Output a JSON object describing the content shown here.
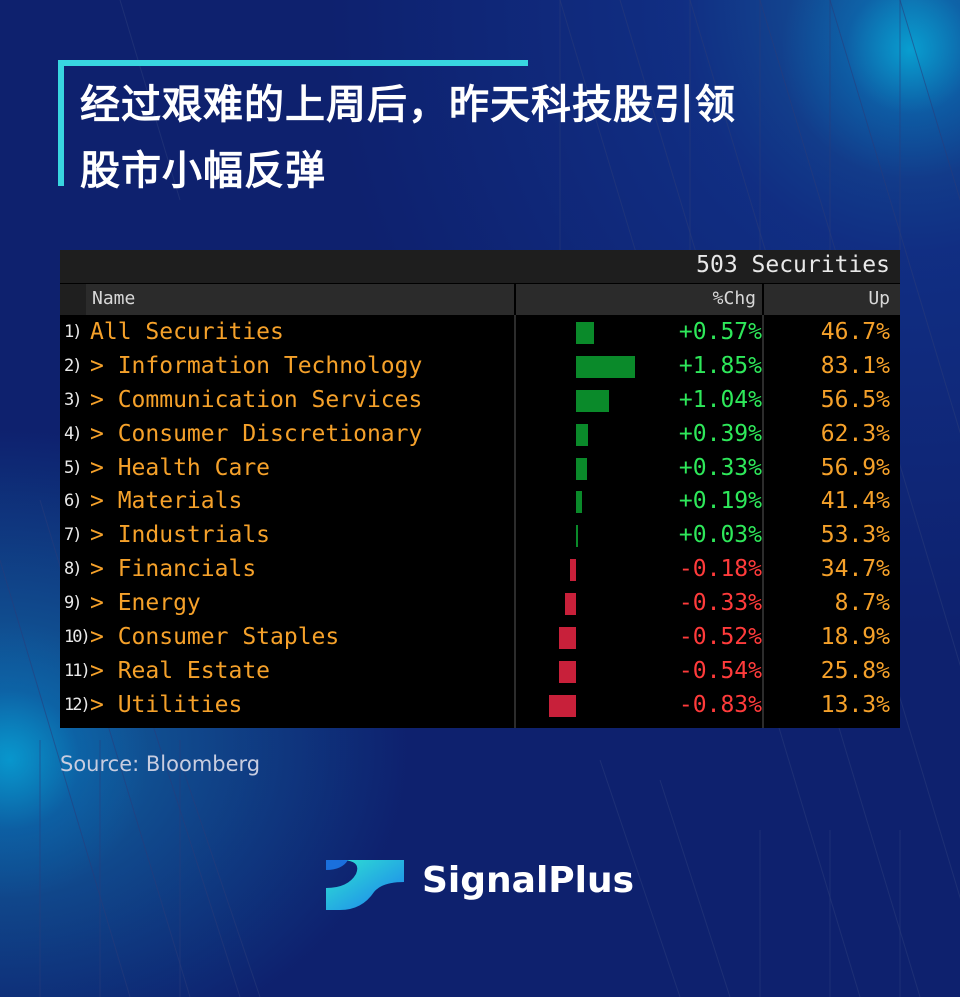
{
  "title": {
    "line1": "经过艰难的上周后，昨天科技股引领",
    "line2": "股市小幅反弹"
  },
  "terminal": {
    "securities_count": "503 Securities",
    "columns": {
      "name": "Name",
      "chg": "%Chg",
      "up": "Up"
    },
    "rows": [
      {
        "num": "1)",
        "name": "All Securities",
        "chg": "+0.57%",
        "chg_value": 0.57,
        "up": "46.7%"
      },
      {
        "num": "2)",
        "name": "> Information Technology",
        "chg": "+1.85%",
        "chg_value": 1.85,
        "up": "83.1%"
      },
      {
        "num": "3)",
        "name": "> Communication Services",
        "chg": "+1.04%",
        "chg_value": 1.04,
        "up": "56.5%"
      },
      {
        "num": "4)",
        "name": "> Consumer Discretionary",
        "chg": "+0.39%",
        "chg_value": 0.39,
        "up": "62.3%"
      },
      {
        "num": "5)",
        "name": "> Health Care",
        "chg": "+0.33%",
        "chg_value": 0.33,
        "up": "56.9%"
      },
      {
        "num": "6)",
        "name": "> Materials",
        "chg": "+0.19%",
        "chg_value": 0.19,
        "up": "41.4%"
      },
      {
        "num": "7)",
        "name": "> Industrials",
        "chg": "+0.03%",
        "chg_value": 0.03,
        "up": "53.3%"
      },
      {
        "num": "8)",
        "name": "> Financials",
        "chg": "-0.18%",
        "chg_value": -0.18,
        "up": "34.7%"
      },
      {
        "num": "9)",
        "name": "> Energy",
        "chg": "-0.33%",
        "chg_value": -0.33,
        "up": "8.7%"
      },
      {
        "num": "10)",
        "name": "> Consumer Staples",
        "chg": "-0.52%",
        "chg_value": -0.52,
        "up": "18.9%"
      },
      {
        "num": "11)",
        "name": "> Real Estate",
        "chg": "-0.54%",
        "chg_value": -0.54,
        "up": "25.8%"
      },
      {
        "num": "12)",
        "name": "> Utilities",
        "chg": "-0.83%",
        "chg_value": -0.83,
        "up": "13.3%"
      }
    ]
  },
  "source": "Source: Bloomberg",
  "brand": {
    "name": "SignalPlus",
    "icon": "signalplus-logo-icon"
  },
  "colors": {
    "background": "#07113f",
    "accent": "#38d6e0",
    "positive": "#2ee85a",
    "negative": "#ff3b3b",
    "orange": "#f5a12a",
    "bar_positive": "#0a8a2a",
    "bar_negative": "#c8203a"
  }
}
